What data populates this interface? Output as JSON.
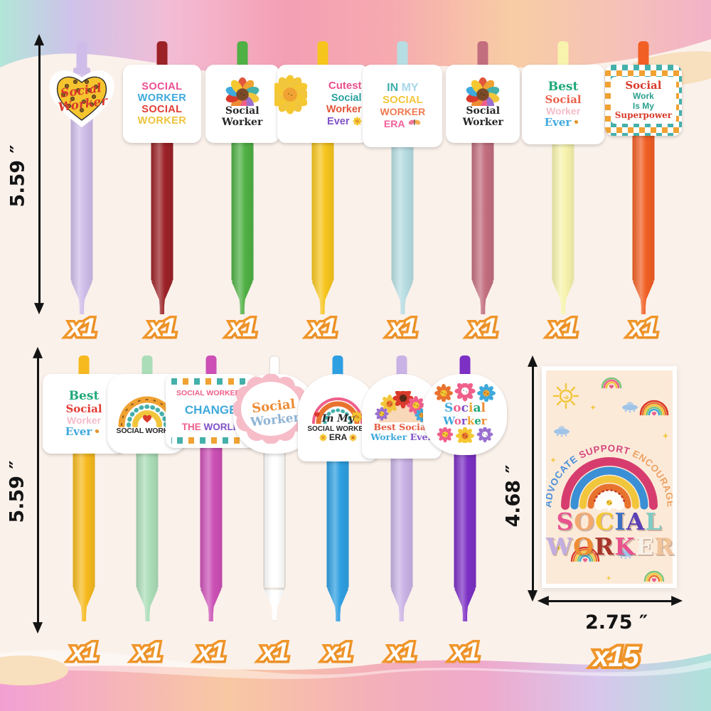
{
  "measurements": {
    "pen_row1_height": "5.59 ″",
    "pen_row2_height": "5.59 ″",
    "card_height": "4.68 ″",
    "card_width": "2.75 ″"
  },
  "rows": [
    {
      "pens": [
        {
          "color": "#cfbce9",
          "qty": "x1",
          "sticker": {
            "type": "heart",
            "heart_fill": "#f5c42e",
            "text_color": "#d93a2b",
            "lines": [
              {
                "t": "Social",
                "c": "#d93a2b"
              },
              {
                "t": "Worker",
                "c": "#d93a2b"
              }
            ]
          }
        },
        {
          "color": "#9b2227",
          "qty": "x1",
          "sticker": {
            "type": "stack",
            "lines": [
              {
                "t": "SOCIAL",
                "c": "#eb4f92"
              },
              {
                "t": "WORKER",
                "c": "#3fa9dc"
              },
              {
                "t": "SOCIAL",
                "c": "#e23b35"
              },
              {
                "t": "WORKER",
                "c": "#eec33c"
              }
            ]
          }
        },
        {
          "color": "#4fb044",
          "qty": "x1",
          "sticker": {
            "type": "sunflower",
            "lines": [
              {
                "t": "Social",
                "c": "#262626"
              },
              {
                "t": "Worker",
                "c": "#262626"
              }
            ]
          }
        },
        {
          "color": "#f6c51c",
          "qty": "x1",
          "sticker": {
            "type": "cutest",
            "lines": [
              {
                "t": "Cutest",
                "c": "#ea4f8e"
              },
              {
                "t": "Social",
                "c": "#2aa0a0"
              },
              {
                "t": "Worker",
                "c": "#e2573c"
              },
              {
                "t": "Ever",
                "c": "#8050c8"
              }
            ]
          }
        },
        {
          "color": "#b6dde2",
          "qty": "x1",
          "sticker": {
            "type": "era1",
            "lines": [
              {
                "t": "IN",
                "c": "#3fb0ac"
              },
              {
                "t": "MY",
                "c": "#a8d8e8"
              },
              {
                "t": "SOCIAL",
                "c": "#f2c63c"
              },
              {
                "t": "WORKER",
                "c": "#f07b50"
              },
              {
                "t": "ERA",
                "c": "#f0609a"
              }
            ]
          }
        },
        {
          "color": "#c26e7e",
          "qty": "x1",
          "sticker": {
            "type": "sunflower",
            "lines": [
              {
                "t": "Social",
                "c": "#262626"
              },
              {
                "t": "Worker",
                "c": "#262626"
              }
            ]
          }
        },
        {
          "color": "#f7f3ad",
          "qty": "x1",
          "sticker": {
            "type": "best",
            "lines": [
              {
                "t": "Best",
                "c": "#1fa878"
              },
              {
                "t": "Social",
                "c": "#e8614c"
              },
              {
                "t": "Worker",
                "c": "#f5bcca"
              },
              {
                "t": "Ever",
                "c": "#41a8dc"
              }
            ]
          }
        },
        {
          "color": "#f15f24",
          "qty": "x1",
          "sticker": {
            "type": "superpower",
            "lines": [
              {
                "t": "Social",
                "c": "#d93a2b"
              },
              {
                "t": "Work",
                "c": "#2aa08e"
              },
              {
                "t": "Is My",
                "c": "#2aa08e"
              },
              {
                "t": "Superpower",
                "c": "#d93a2b"
              }
            ]
          }
        }
      ]
    },
    {
      "pens": [
        {
          "color": "#f6ba1e",
          "qty": "x1",
          "sticker": {
            "type": "best",
            "lines": [
              {
                "t": "Best",
                "c": "#1fa878"
              },
              {
                "t": "Social",
                "c": "#e23b35"
              },
              {
                "t": "Worker",
                "c": "#f5bcca"
              },
              {
                "t": "Ever",
                "c": "#41a8dc"
              }
            ]
          }
        },
        {
          "color": "#abddb8",
          "qty": "x1",
          "sticker": {
            "type": "rainbow",
            "lines": [
              {
                "t": "SOCIAL WORKER",
                "c": "#262626"
              }
            ]
          }
        },
        {
          "color": "#cc50b6",
          "qty": "x1",
          "sticker": {
            "type": "change",
            "lines": [
              {
                "t": "SOCIAL WORKERS",
                "c": "#ef5f8a"
              },
              {
                "t": "CHANGE",
                "c": "#3fa9dc"
              },
              {
                "t": "THE",
                "c": "#ef5f8a"
              },
              {
                "t": "WORLD",
                "c": "#8050c8"
              }
            ]
          }
        },
        {
          "color": "#ffffff",
          "qty": "x1",
          "sticker": {
            "type": "groovy",
            "lines": [
              {
                "t": "Social",
                "c": "#ee8b33"
              },
              {
                "t": "Worker",
                "c": "#8fb4d4"
              }
            ]
          }
        },
        {
          "color": "#2e9fe1",
          "qty": "x1",
          "sticker": {
            "type": "era2",
            "lines": [
              {
                "t": "In My",
                "c": "#262626"
              },
              {
                "t": "SOCIAL WORKER",
                "c": "#262626"
              },
              {
                "t": "ERA",
                "c": "#262626"
              }
            ]
          }
        },
        {
          "color": "#c9b2e5",
          "qty": "x1",
          "sticker": {
            "type": "bestarch",
            "lines": [
              {
                "t": "Best Social",
                "c": "#e2573c"
              },
              {
                "t": "Worker",
                "c": "#3fa9dc"
              },
              {
                "t": "Ever",
                "c": "#8050c8"
              }
            ]
          }
        },
        {
          "color": "#7c30c4",
          "qty": "x1",
          "sticker": {
            "type": "floral",
            "word1": "Social",
            "word2": "Worker",
            "palette": [
              "#3fa9dc",
              "#ef5f8a",
              "#8050c8",
              "#f0a232",
              "#1fa878",
              "#ee8b33"
            ]
          }
        }
      ]
    }
  ],
  "card": {
    "qty": "x15",
    "arch_words": [
      {
        "t": "ADVOCATE",
        "c": "#4a90d9"
      },
      {
        "t": "SUPPORT",
        "c": "#d4497e"
      },
      {
        "t": "ENCOURAGE",
        "c": "#eda366"
      }
    ],
    "word1_letters": [
      {
        "t": "S",
        "c": "#e8538f"
      },
      {
        "t": "O",
        "c": "#f2a970"
      },
      {
        "t": "C",
        "c": "#f5c832"
      },
      {
        "t": "I",
        "c": "#3b6fc4"
      },
      {
        "t": "A",
        "c": "#5a3fb8"
      },
      {
        "t": "L",
        "c": "#7ecbc4"
      }
    ],
    "word2_letters": [
      {
        "t": "W",
        "c": "#c3aee0"
      },
      {
        "t": "O",
        "c": "#ee8b33"
      },
      {
        "t": "R",
        "c": "#a8342a"
      },
      {
        "t": "K",
        "c": "#e8538f"
      },
      {
        "t": "E",
        "c": "#f7f3ea"
      },
      {
        "t": "R",
        "c": "#f2c49b"
      }
    ]
  }
}
